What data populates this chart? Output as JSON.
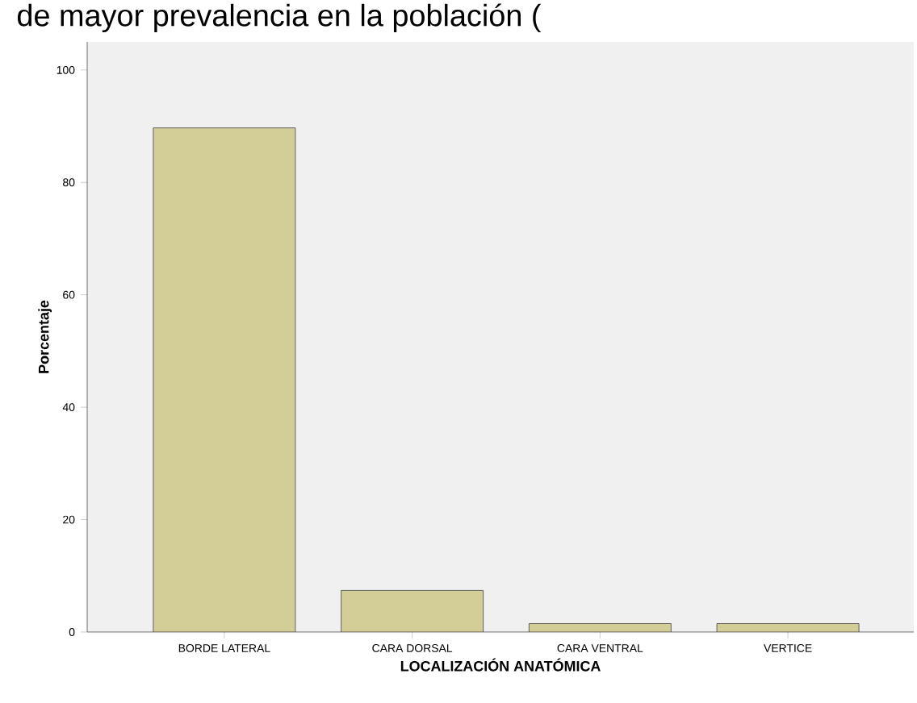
{
  "chart_data": {
    "type": "bar",
    "title": "de mayor prevalencia en la población (",
    "categories": [
      "BORDE LATERAL",
      "CARA DORSAL",
      "CARA VENTRAL",
      "VERTICE"
    ],
    "values": [
      89.7,
      7.4,
      1.5,
      1.5
    ],
    "color": "#d3ce97",
    "xlabel": "LOCALIZACIÓN ANATÓMICA",
    "ylabel": "Porcentaje",
    "ylim": [
      0,
      105
    ],
    "yticks": [
      0,
      20,
      40,
      60,
      80,
      100
    ]
  }
}
